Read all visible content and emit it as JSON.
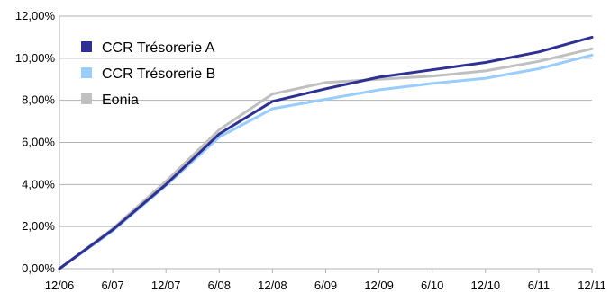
{
  "chart_data": {
    "type": "line",
    "x": [
      "12/06",
      "6/07",
      "12/07",
      "6/08",
      "12/08",
      "6/09",
      "12/09",
      "6/10",
      "12/10",
      "6/11",
      "12/11"
    ],
    "ylim": [
      0,
      12
    ],
    "ytick_labels": [
      "0,00%",
      "2,00%",
      "4,00%",
      "6,00%",
      "8,00%",
      "10,00%",
      "12,00%"
    ],
    "grid": "horizontal",
    "legend_position": "top-left",
    "series": [
      {
        "name": "CCR Trésorerie A",
        "color": "#2E3192",
        "values": [
          0,
          1.85,
          4.0,
          6.4,
          7.95,
          8.55,
          9.1,
          9.45,
          9.8,
          10.3,
          11.0
        ]
      },
      {
        "name": "CCR Trésorerie B",
        "color": "#99CCFF",
        "values": [
          0,
          1.8,
          3.95,
          6.25,
          7.6,
          8.05,
          8.5,
          8.8,
          9.05,
          9.5,
          10.15
        ]
      },
      {
        "name": "Eonia",
        "color": "#C0C0C0",
        "values": [
          0,
          1.9,
          4.15,
          6.6,
          8.3,
          8.85,
          9.0,
          9.15,
          9.4,
          9.85,
          10.45
        ]
      }
    ]
  }
}
